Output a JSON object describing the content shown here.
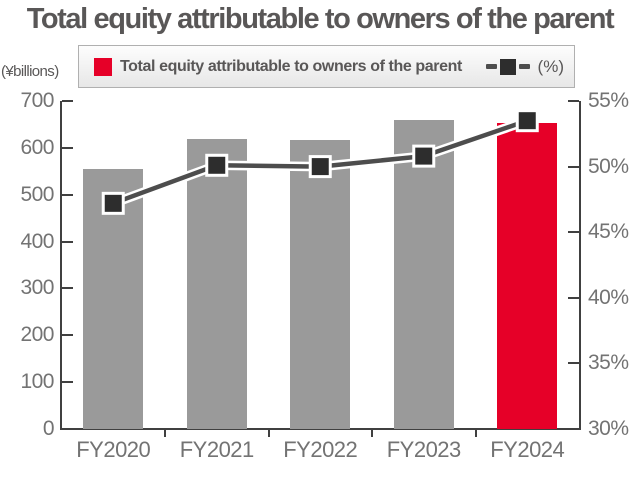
{
  "header": {
    "title": "Total equity attributable to owners of the parent"
  },
  "legend": {
    "bar_label": "Total equity attributable to owners of the parent",
    "line_label": "(%)"
  },
  "chart_data": {
    "type": "bar",
    "title": "Total equity attributable to owners of the parent",
    "categories": [
      "FY2020",
      "FY2021",
      "FY2022",
      "FY2023",
      "FY2024"
    ],
    "series": [
      {
        "name": "Total equity attributable to owners of the parent",
        "type": "bar",
        "axis": "left",
        "values": [
          555,
          619,
          616,
          660,
          653
        ]
      },
      {
        "name": "(%)",
        "type": "line",
        "axis": "right",
        "values": [
          47.2,
          50.1,
          50.0,
          50.8,
          53.5
        ]
      }
    ],
    "left_axis": {
      "label": "(¥billions)",
      "min": 0,
      "max": 700,
      "ticks": [
        700,
        600,
        500,
        400,
        300,
        200,
        100,
        0
      ]
    },
    "right_axis": {
      "min": 30,
      "max": 55,
      "ticks": [
        55,
        50,
        45,
        40,
        35,
        30
      ],
      "tick_suffix": "%"
    },
    "legend_position": "top",
    "grid": false,
    "colors": {
      "bar": "#9a9a9a",
      "bar_highlight": "#e60028",
      "highlight_index": 4,
      "line": "#4d4d4d",
      "line_casing": "#ffffff",
      "marker": "#2d2d2d",
      "axis": "#404040",
      "tick_text": "#737373",
      "title_text": "#595757"
    }
  }
}
